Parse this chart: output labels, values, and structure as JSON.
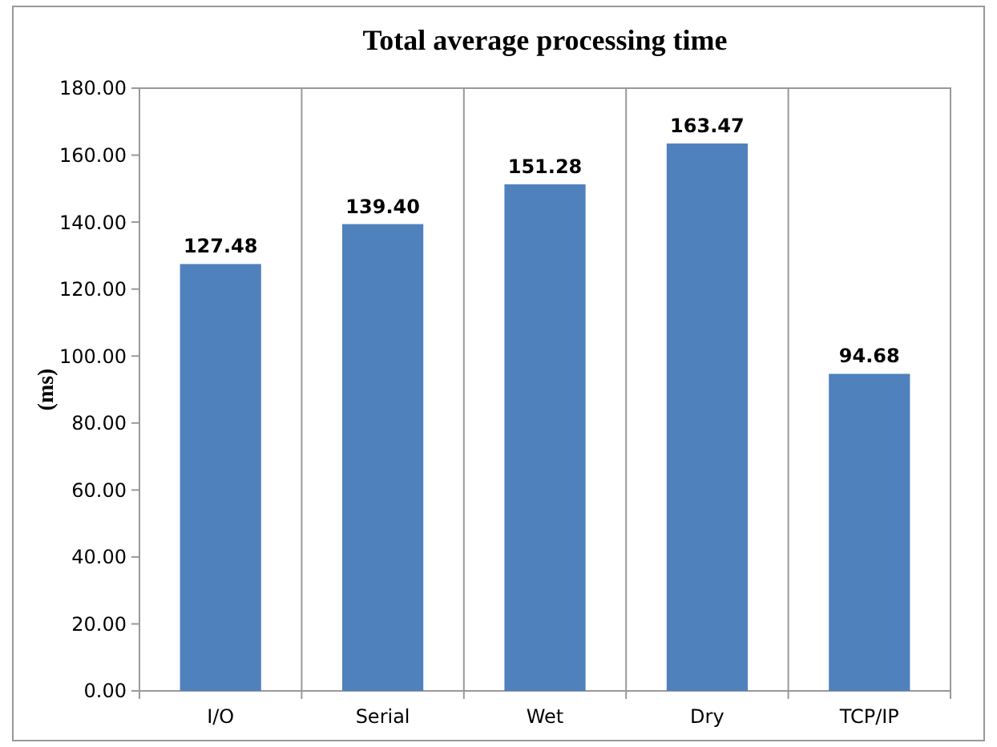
{
  "chart_data": {
    "type": "bar",
    "title": "Total average processing time",
    "ylabel": "(ms)",
    "categories": [
      "I/O",
      "Serial",
      "Wet",
      "Dry",
      "TCP/IP"
    ],
    "values": [
      127.48,
      139.4,
      151.28,
      163.47,
      94.68
    ],
    "value_labels": [
      "127.48",
      "139.40",
      "151.28",
      "163.47",
      "94.68"
    ],
    "color": "#4f81bd",
    "ylim": [
      0,
      180
    ],
    "yticks": [
      {
        "value": 0,
        "label": "0.00"
      },
      {
        "value": 20,
        "label": "20.00"
      },
      {
        "value": 40,
        "label": "40.00"
      },
      {
        "value": 60,
        "label": "60.00"
      },
      {
        "value": 80,
        "label": "80.00"
      },
      {
        "value": 100,
        "label": "100.00"
      },
      {
        "value": 120,
        "label": "120.00"
      },
      {
        "value": 140,
        "label": "140.00"
      },
      {
        "value": 160,
        "label": "160.00"
      },
      {
        "value": 180,
        "label": "180.00"
      }
    ],
    "grid": "x"
  }
}
